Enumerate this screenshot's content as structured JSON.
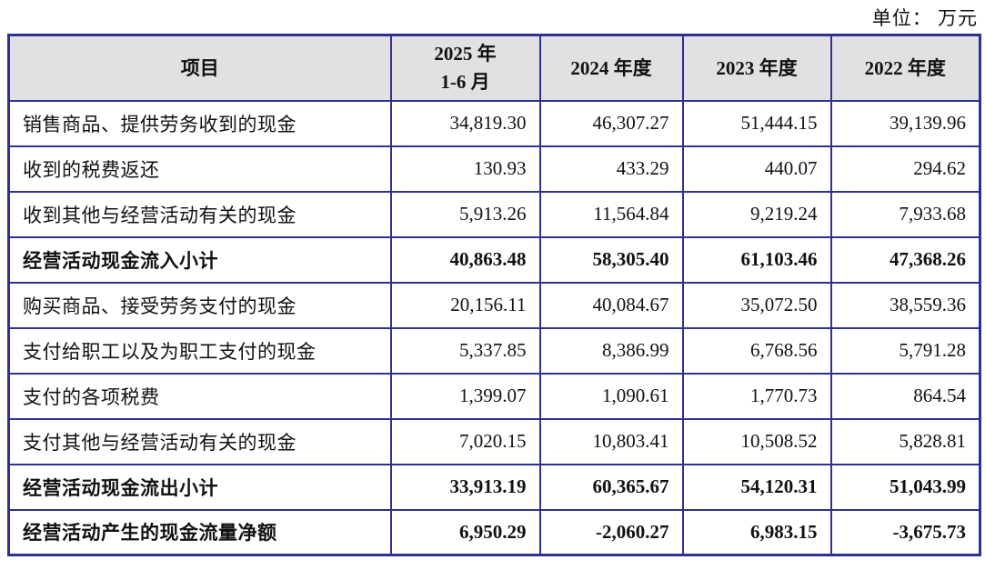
{
  "unit_label": "单位： 万元",
  "colors": {
    "border": "#2F3191",
    "header_bg": "#E1E1E3",
    "text": "#111111"
  },
  "table": {
    "header": {
      "item": "项目",
      "col1": "2025 年\n1-6 月",
      "col2": "2024 年度",
      "col3": "2023 年度",
      "col4": "2022 年度"
    },
    "rows": [
      {
        "label": "销售商品、提供劳务收到的现金",
        "bold": false,
        "values": [
          "34,819.30",
          "46,307.27",
          "51,444.15",
          "39,139.96"
        ]
      },
      {
        "label": "收到的税费返还",
        "bold": false,
        "values": [
          "130.93",
          "433.29",
          "440.07",
          "294.62"
        ]
      },
      {
        "label": "收到其他与经营活动有关的现金",
        "bold": false,
        "values": [
          "5,913.26",
          "11,564.84",
          "9,219.24",
          "7,933.68"
        ]
      },
      {
        "label": "经营活动现金流入小计",
        "bold": true,
        "values": [
          "40,863.48",
          "58,305.40",
          "61,103.46",
          "47,368.26"
        ]
      },
      {
        "label": "购买商品、接受劳务支付的现金",
        "bold": false,
        "values": [
          "20,156.11",
          "40,084.67",
          "35,072.50",
          "38,559.36"
        ]
      },
      {
        "label": "支付给职工以及为职工支付的现金",
        "bold": false,
        "values": [
          "5,337.85",
          "8,386.99",
          "6,768.56",
          "5,791.28"
        ]
      },
      {
        "label": "支付的各项税费",
        "bold": false,
        "values": [
          "1,399.07",
          "1,090.61",
          "1,770.73",
          "864.54"
        ]
      },
      {
        "label": "支付其他与经营活动有关的现金",
        "bold": false,
        "values": [
          "7,020.15",
          "10,803.41",
          "10,508.52",
          "5,828.81"
        ]
      },
      {
        "label": "经营活动现金流出小计",
        "bold": true,
        "values": [
          "33,913.19",
          "60,365.67",
          "54,120.31",
          "51,043.99"
        ]
      },
      {
        "label": "经营活动产生的现金流量净额",
        "bold": true,
        "values": [
          "6,950.29",
          "-2,060.27",
          "6,983.15",
          "-3,675.73"
        ]
      }
    ]
  }
}
